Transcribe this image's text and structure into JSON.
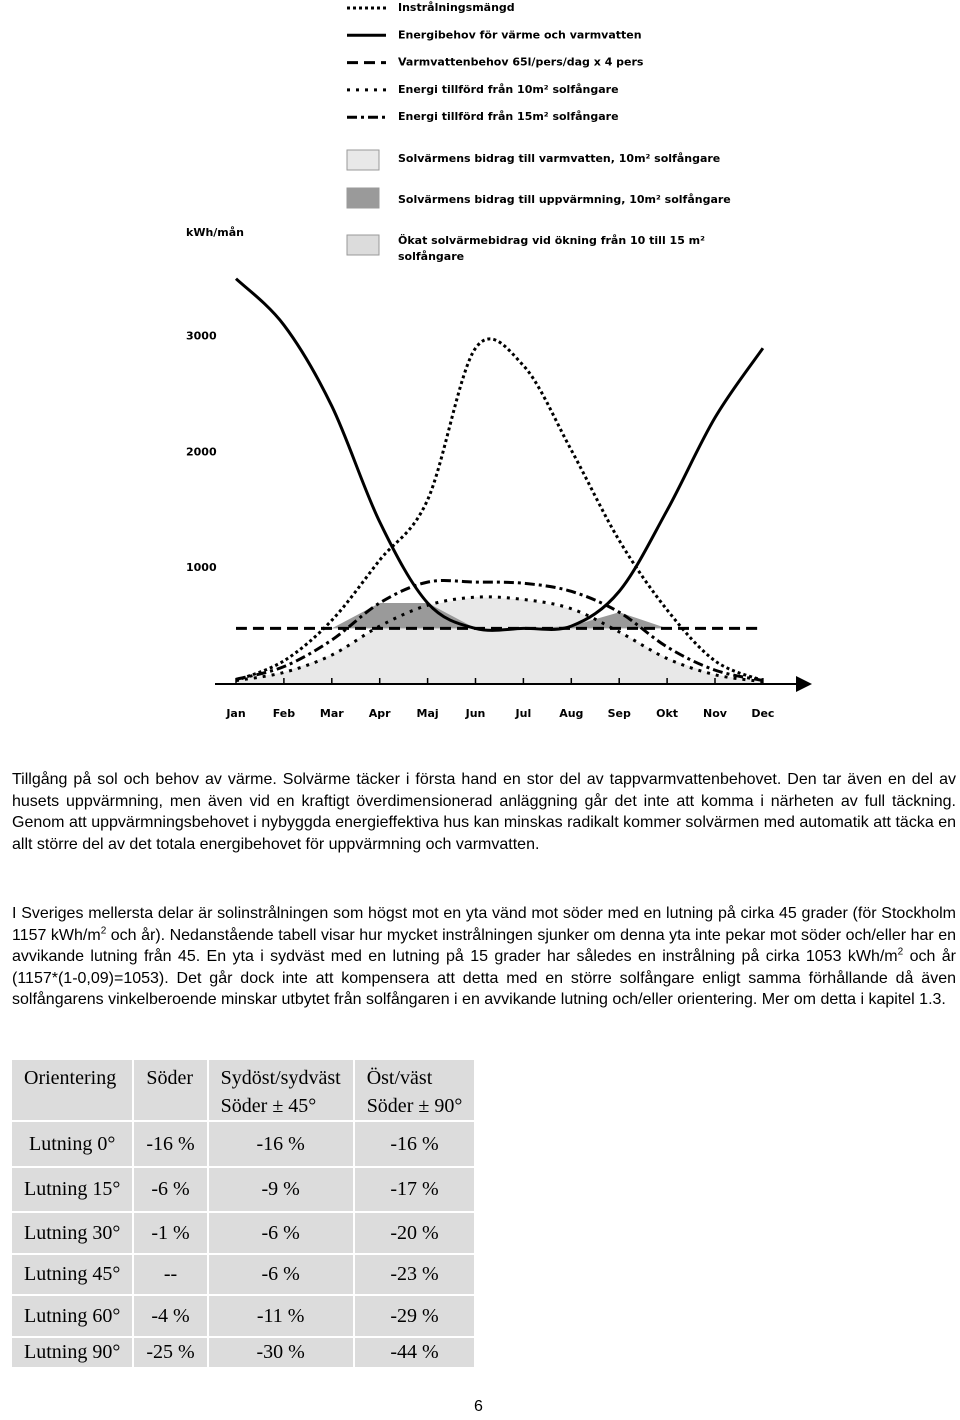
{
  "chart_data": {
    "type": "line",
    "y_label": "kWh/mån",
    "categories": [
      "Jan",
      "Feb",
      "Mar",
      "Apr",
      "Maj",
      "Jun",
      "Jul",
      "Aug",
      "Sep",
      "Okt",
      "Nov",
      "Dec"
    ],
    "ylim": [
      0,
      3900
    ],
    "yticks": [
      1000,
      2000,
      3000
    ],
    "series": [
      {
        "name": "Instrålningsmängd",
        "color": "#000000",
        "style": "dotted",
        "values": [
          30,
          200,
          550,
          1070,
          1590,
          2900,
          2750,
          2020,
          1240,
          640,
          200,
          30
        ]
      },
      {
        "name": "Energibehov för värme och varmvatten",
        "color": "#000000",
        "style": "solid",
        "values": [
          3500,
          3100,
          2400,
          1400,
          700,
          480,
          480,
          500,
          800,
          1500,
          2300,
          2900
        ]
      },
      {
        "name": "Varmvattenbehov 65l/pers/dag x 4 pers",
        "color": "#000000",
        "style": "dashed",
        "values": [
          480,
          480,
          480,
          480,
          480,
          480,
          480,
          480,
          480,
          480,
          480,
          480
        ]
      },
      {
        "name": "Energi tillförd från 10m² solfångare",
        "color": "#000000",
        "style": "dotted-wide",
        "values": [
          30,
          100,
          250,
          500,
          680,
          750,
          730,
          650,
          450,
          220,
          80,
          20
        ]
      },
      {
        "name": "Energi tillförd från 15m² solfångare",
        "color": "#000000",
        "style": "dash-dot",
        "values": [
          40,
          150,
          380,
          700,
          880,
          880,
          870,
          800,
          620,
          320,
          120,
          30
        ]
      }
    ],
    "areas": [
      {
        "name": "Solvärmens bidrag till varmvatten, 10m² solfångare",
        "color": "#e8e8e8"
      },
      {
        "name": "Solvärmens bidrag till uppvärmning, 10m² solfångare",
        "color": "#9a9a9a"
      },
      {
        "name": "Ökat solvärmebidrag vid ökning från 10 till 15 m² solfångare",
        "color": "#dcdcdc"
      }
    ]
  },
  "paragraph_1": "Tillgång på sol och behov av värme. Solvärme täcker i första hand en stor del av tappvarmvattenbehovet. Den tar även en del av husets uppvärmning, men även vid en kraftigt överdimensionerad anläggning går det inte att komma i närheten av full täckning. Genom att uppvärmningsbehovet i nybyggda energieffektiva hus kan minskas radikalt kommer solvärmen med automatik att täcka en allt större del av det totala energibehovet för uppvärmning och varmvatten.",
  "paragraph_2": [
    "I Sveriges mellersta delar är solinstrålningen som högst mot en yta vänd mot söder med en lutning på cirka 45 grader (för Stockholm 1157 kWh/m",
    "2",
    " och år). Nedanstående tabell visar hur mycket instrålningen sjunker om denna yta inte pekar mot söder och/eller har en avvikande lutning från 45. En yta i sydväst med en lutning på 15 grader har således en instrålning på cirka 1053 kWh/m",
    "2",
    " och år (1157*(1-0,09)=1053). Det går dock inte att kompensera att detta med en större solfångare enligt samma förhållande då även solfångarens vinkelberoende minskar utbytet från solfångaren i en avvikande lutning och/eller orientering. Mer om detta i kapitel 1.3."
  ],
  "table": {
    "header": [
      [
        "Orientering"
      ],
      [
        "Söder"
      ],
      [
        "Sydöst/sydväst",
        "Söder ± 45°"
      ],
      [
        "Öst/väst",
        "Söder ± 90°"
      ]
    ],
    "rows": [
      [
        "Lutning 0°",
        "-16 %",
        "-16 %",
        "-16 %"
      ],
      [
        "Lutning 15°",
        "-6 %",
        "-9 %",
        "-17 %"
      ],
      [
        "Lutning 30°",
        "-1 %",
        "-6 %",
        "-20 %"
      ],
      [
        "Lutning 45°",
        "--",
        "-6 %",
        "-23 %"
      ],
      [
        "Lutning 60°",
        "-4 %",
        "-11 %",
        "-29 %"
      ],
      [
        "Lutning 90°",
        "-25 %",
        "-30 %",
        "-44 %"
      ]
    ]
  },
  "page_number": "6"
}
